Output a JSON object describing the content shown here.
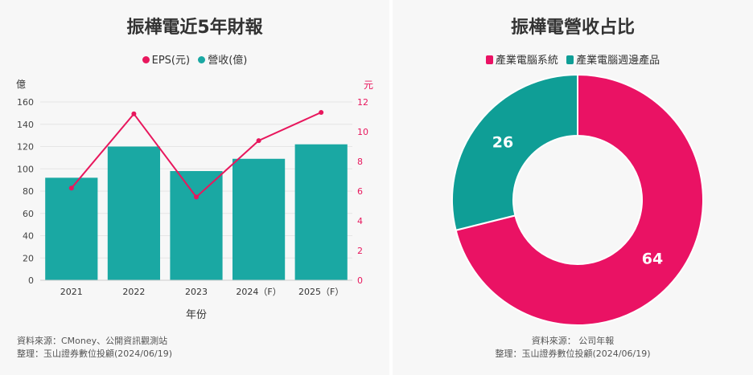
{
  "left": {
    "title": "振樺電近5年財報",
    "source_line1": "資料來源：CMoney、公開資訊觀測站",
    "source_line2": "整理：玉山證券數位投顧(2024/06/19)"
  },
  "right": {
    "title": "振樺電營收占比",
    "source_line1": "資料來源： 公司年報",
    "source_line2": "整理：玉山證券數位投顧(2024/06/19)"
  },
  "colors": {
    "revenue": "#1aa8a3",
    "eps": "#e8175d",
    "pie_primary": "#ea1264",
    "pie_secondary": "#0f9e96"
  },
  "chart_data": [
    {
      "type": "bar",
      "title": "振樺電近5年財報",
      "categories": [
        "2021",
        "2022",
        "2023",
        "2024（F）",
        "2025（F）"
      ],
      "xlabel": "年份",
      "ylabel_left": "億",
      "ylabel_right": "元",
      "ylim_left": [
        0,
        160
      ],
      "ylim_right": [
        0,
        12
      ],
      "yticks_left": [
        "0",
        "20",
        "40",
        "60",
        "80",
        "100",
        "120",
        "140",
        "160"
      ],
      "yticks_right": [
        "0",
        "2",
        "4",
        "6",
        "8",
        "10",
        "12"
      ],
      "legend_position": "top",
      "series": [
        {
          "name": "營收(億)",
          "type": "bar",
          "axis": "left",
          "values": [
            92,
            120,
            98,
            109,
            122
          ]
        },
        {
          "name": "EPS(元)",
          "type": "line",
          "axis": "right",
          "values": [
            6.2,
            11.2,
            5.6,
            9.4,
            11.3
          ]
        }
      ]
    },
    {
      "type": "pie",
      "title": "振樺電營收占比",
      "donut": true,
      "legend_position": "top",
      "labels": [
        "產業電腦系統",
        "產業電腦週邊產品"
      ],
      "values": [
        64,
        26
      ]
    }
  ]
}
